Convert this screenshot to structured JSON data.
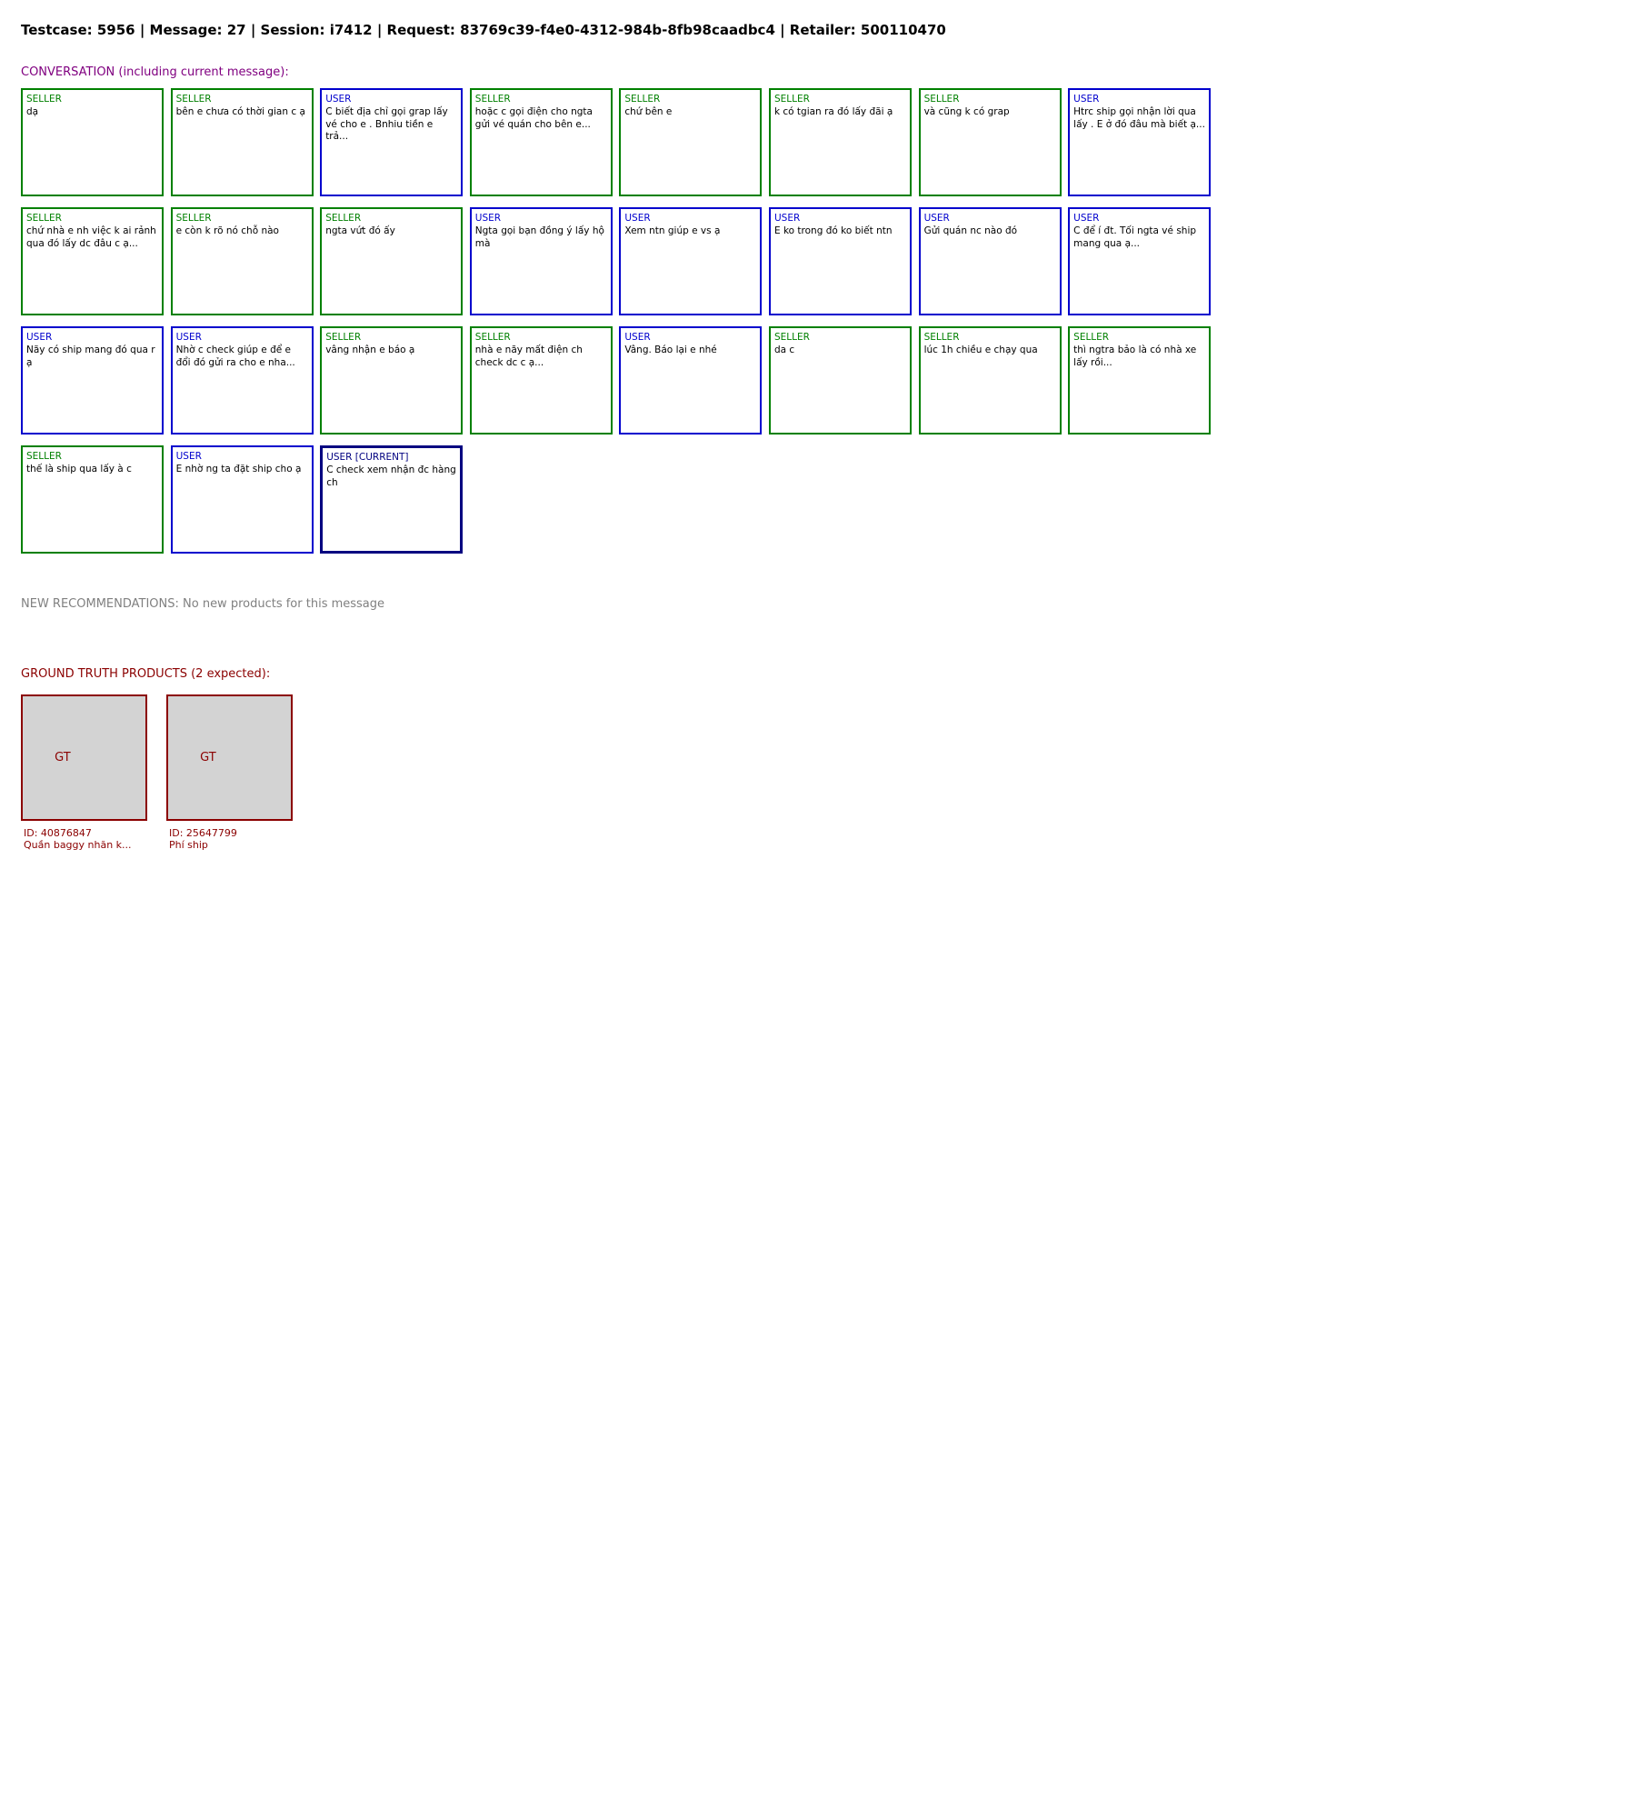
{
  "header": {
    "title": "Testcase: 5956 | Message: 27 | Session: i7412 | Request: 83769c39-f4e0-4312-984b-8fb98caadbc4 | Retailer: 500110470"
  },
  "conversation": {
    "heading": "CONVERSATION (including current message):",
    "messages": [
      {
        "role": "seller",
        "label": "SELLER",
        "text": "dạ",
        "current": false
      },
      {
        "role": "seller",
        "label": "SELLER",
        "text": "bên e chưa có thời gian c ạ",
        "current": false
      },
      {
        "role": "user",
        "label": "USER",
        "text": "C biết địa chỉ gọi grap lấy vé cho e . Bnhiu tiền e trả...",
        "current": false
      },
      {
        "role": "seller",
        "label": "SELLER",
        "text": "hoặc c gọi điện cho ngta gửi vé quán cho bên e...",
        "current": false
      },
      {
        "role": "seller",
        "label": "SELLER",
        "text": "chứ bên e",
        "current": false
      },
      {
        "role": "seller",
        "label": "SELLER",
        "text": "k có tgian ra đó lấy đãi ạ",
        "current": false
      },
      {
        "role": "seller",
        "label": "SELLER",
        "text": "và cũng k có grap",
        "current": false
      },
      {
        "role": "user",
        "label": "USER",
        "text": "Htrc ship gọi nhận lời qua lấy . E ở đó đâu mà biết ạ...",
        "current": false
      },
      {
        "role": "seller",
        "label": "SELLER",
        "text": "chứ nhà e nh việc k ai rảnh qua đó lấy dc đâu c ạ...",
        "current": false
      },
      {
        "role": "seller",
        "label": "SELLER",
        "text": "e còn k rõ nó chỗ nào",
        "current": false
      },
      {
        "role": "seller",
        "label": "SELLER",
        "text": "ngta vứt đó ấy",
        "current": false
      },
      {
        "role": "user",
        "label": "USER",
        "text": "Ngta gọi bạn đồng ý lấy hộ mà",
        "current": false
      },
      {
        "role": "user",
        "label": "USER",
        "text": "Xem ntn giúp e vs ạ",
        "current": false
      },
      {
        "role": "user",
        "label": "USER",
        "text": "E ko trong đó ko biết ntn",
        "current": false
      },
      {
        "role": "user",
        "label": "USER",
        "text": "Gửi quán nc nào đó",
        "current": false
      },
      {
        "role": "user",
        "label": "USER",
        "text": "C để í đt. Tối ngta vé ship mang qua ạ...",
        "current": false
      },
      {
        "role": "user",
        "label": "USER",
        "text": "Nãy có ship mang đó qua r ạ",
        "current": false
      },
      {
        "role": "user",
        "label": "USER",
        "text": "Nhờ c check giúp e để e đổi đó gửi ra cho e nha...",
        "current": false
      },
      {
        "role": "seller",
        "label": "SELLER",
        "text": "vâng nhận e báo ạ",
        "current": false
      },
      {
        "role": "seller",
        "label": "SELLER",
        "text": "nhà e nãy mất điện ch check dc c ạ...",
        "current": false
      },
      {
        "role": "user",
        "label": "USER",
        "text": "Vâng. Báo lại e nhé",
        "current": false
      },
      {
        "role": "seller",
        "label": "SELLER",
        "text": "da c",
        "current": false
      },
      {
        "role": "seller",
        "label": "SELLER",
        "text": "lúc 1h chiều e chạy qua",
        "current": false
      },
      {
        "role": "seller",
        "label": "SELLER",
        "text": "thì ngtra bảo là có nhà xe lấy rồi...",
        "current": false
      },
      {
        "role": "seller",
        "label": "SELLER",
        "text": "thế là ship qua lấy à c",
        "current": false
      },
      {
        "role": "user",
        "label": "USER",
        "text": "E nhờ ng ta đặt ship cho ạ",
        "current": false
      },
      {
        "role": "user",
        "label": "USER [CURRENT]",
        "text": "C check xem nhận đc hàng ch",
        "current": true
      }
    ]
  },
  "recommendations": {
    "text": "NEW RECOMMENDATIONS: No new products for this message"
  },
  "ground_truth": {
    "heading": "GROUND TRUTH PRODUCTS (2 expected):",
    "placeholder": "GT",
    "products": [
      {
        "id_label": "ID: 40876847",
        "name": "Quần baggy nhăn k..."
      },
      {
        "id_label": "ID: 25647799",
        "name": "Phí ship"
      }
    ]
  },
  "colors": {
    "seller": "#008000",
    "user": "#0000cd",
    "current": "#000080",
    "conversation_heading": "#800080",
    "recommendations": "#808080",
    "ground_truth": "#8b0000",
    "placeholder_bg": "#d3d3d3"
  }
}
